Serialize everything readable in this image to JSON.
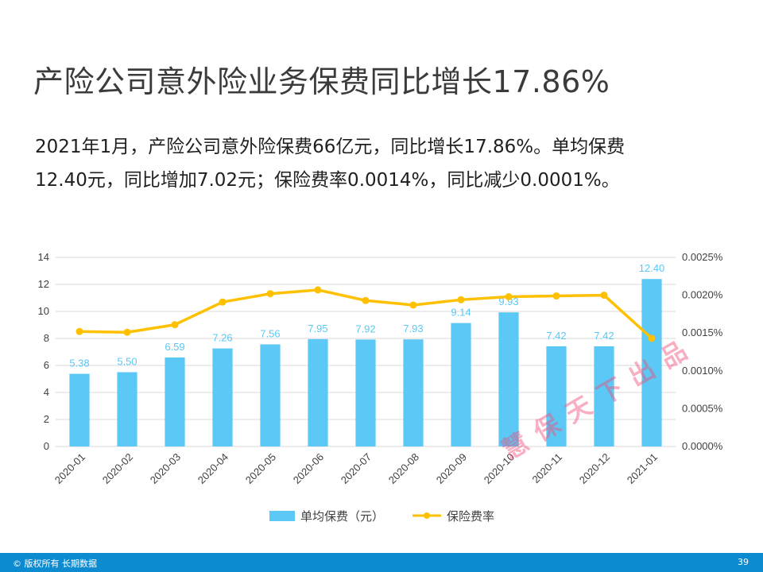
{
  "page": {
    "title": "产险公司意外险业务保费同比增长17.86%",
    "body_line1": "2021年1月，产险公司意外险保费66亿元，同比增长17.86%。单均保费",
    "body_line2": "12.40元，同比增加7.02元；保险费率0.0014%，同比减少0.0001%。",
    "footer_copyright": "© 版权所有 长期数据",
    "page_number": "39",
    "watermark": "慧保天下出品"
  },
  "colors": {
    "bar": "#5bc8f5",
    "line": "#ffc000",
    "bar_label": "#5bc8f5",
    "axis_text": "#404040",
    "grid": "#d9d9d9",
    "footer_bg": "#0d8bd1"
  },
  "chart_data": {
    "type": "bar",
    "categories": [
      "2020-01",
      "2020-02",
      "2020-03",
      "2020-04",
      "2020-05",
      "2020-06",
      "2020-07",
      "2020-08",
      "2020-09",
      "2020-10",
      "2020-11",
      "2020-12",
      "2021-01"
    ],
    "series": [
      {
        "name": "单均保费（元）",
        "type": "bar",
        "axis": "left",
        "values": [
          5.38,
          5.5,
          6.59,
          7.26,
          7.56,
          7.95,
          7.92,
          7.93,
          9.14,
          9.93,
          7.42,
          7.42,
          12.4
        ],
        "labels": [
          "5.38",
          "5.50",
          "6.59",
          "7.26",
          "7.56",
          "7.95",
          "7.92",
          "7.93",
          "9.14",
          "9.93",
          "7.42",
          "7.42",
          "12.40"
        ]
      },
      {
        "name": "保险费率",
        "type": "line",
        "axis": "right",
        "values": [
          0.00152,
          0.00151,
          0.00161,
          0.00191,
          0.00202,
          0.00207,
          0.00193,
          0.00187,
          0.00194,
          0.00198,
          0.00199,
          0.002,
          0.00143
        ]
      }
    ],
    "ylim_left": [
      0,
      14
    ],
    "yticks_left": [
      "0",
      "2",
      "4",
      "6",
      "8",
      "10",
      "12",
      "14"
    ],
    "ylim_right": [
      0,
      0.0025
    ],
    "yticks_right": [
      "0.0000%",
      "0.0005%",
      "0.0010%",
      "0.0015%",
      "0.0020%",
      "0.0025%"
    ],
    "grid": true,
    "legend_position": "bottom"
  }
}
